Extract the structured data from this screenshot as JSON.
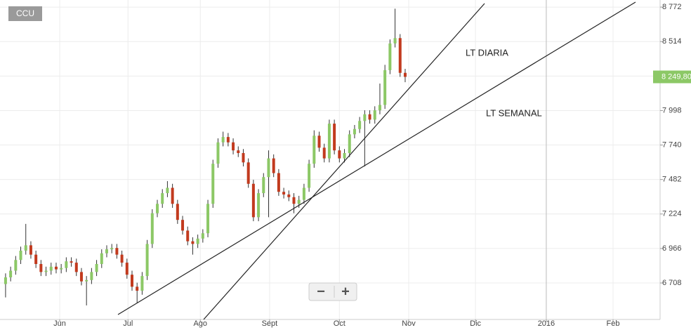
{
  "chart_data": {
    "type": "candlestick",
    "title": "CCU",
    "categories": [
      null,
      null,
      null,
      null,
      null,
      null,
      null,
      null,
      null,
      null,
      null,
      null,
      null,
      null,
      null,
      null,
      null,
      null,
      null,
      null,
      null,
      null,
      null,
      null,
      null,
      null,
      null,
      null,
      null,
      null,
      null,
      null,
      null,
      null,
      null,
      null,
      null,
      null,
      null,
      null,
      null,
      null,
      null,
      null,
      null,
      null,
      null,
      null,
      null,
      null,
      null,
      null,
      null,
      null,
      null,
      null,
      null,
      null,
      null,
      null,
      null,
      null,
      null,
      null,
      null,
      null,
      null,
      null,
      null,
      null,
      null,
      null,
      null,
      null,
      null,
      null,
      null,
      null,
      null,
      null
    ],
    "open": [
      6700,
      6750,
      6800,
      6880,
      6950,
      6990,
      6920,
      6850,
      6790,
      6800,
      6830,
      6810,
      6820,
      6870,
      6860,
      6790,
      6720,
      6730,
      6790,
      6850,
      6930,
      6960,
      6970,
      6920,
      6860,
      6770,
      6680,
      6650,
      6760,
      7000,
      7230,
      7300,
      7380,
      7420,
      7300,
      7180,
      7100,
      7020,
      7000,
      7040,
      7080,
      7300,
      7600,
      7760,
      7800,
      7760,
      7700,
      7680,
      7610,
      7450,
      7200,
      7380,
      7500,
      7640,
      7530,
      7390,
      7370,
      7350,
      7300,
      7330,
      7420,
      7600,
      7810,
      7720,
      7640,
      7900,
      7700,
      7640,
      7680,
      7820,
      7860,
      7920,
      7970,
      7930,
      8000,
      8040,
      8300,
      8500,
      8540,
      8280
    ],
    "high": [
      6780,
      6830,
      6910,
      6980,
      7150,
      7020,
      6950,
      6880,
      6830,
      6860,
      6860,
      6850,
      6900,
      6900,
      6890,
      6820,
      6760,
      6820,
      6880,
      6960,
      6990,
      7000,
      7000,
      6950,
      6890,
      6800,
      6710,
      6790,
      7030,
      7260,
      7330,
      7410,
      7470,
      7450,
      7330,
      7210,
      7130,
      7050,
      7070,
      7110,
      7330,
      7630,
      7790,
      7840,
      7830,
      7790,
      7730,
      7710,
      7640,
      7480,
      7410,
      7530,
      7700,
      7670,
      7560,
      7420,
      7400,
      7380,
      7360,
      7450,
      7630,
      7850,
      7840,
      7750,
      7930,
      7930,
      7730,
      7710,
      7850,
      7890,
      7950,
      8000,
      8000,
      8030,
      8200,
      8340,
      8530,
      8760,
      8570,
      8310
    ],
    "low": [
      6600,
      6720,
      6770,
      6850,
      6920,
      6890,
      6820,
      6760,
      6760,
      6770,
      6780,
      6780,
      6790,
      6830,
      6760,
      6690,
      6540,
      6700,
      6760,
      6820,
      6900,
      6930,
      6890,
      6830,
      6740,
      6650,
      6560,
      6620,
      6730,
      6970,
      7200,
      7270,
      7350,
      7270,
      7150,
      7070,
      6990,
      6920,
      6970,
      7010,
      7050,
      7270,
      7570,
      7730,
      7730,
      7670,
      7650,
      7580,
      7420,
      7170,
      7170,
      7350,
      7200,
      7500,
      7360,
      7340,
      7320,
      7230,
      7270,
      7300,
      7390,
      7570,
      7690,
      7610,
      7610,
      7670,
      7610,
      7610,
      7650,
      7790,
      7830,
      7580,
      7900,
      7900,
      7970,
      8010,
      8270,
      8470,
      8250,
      8210
    ],
    "close": [
      6750,
      6800,
      6880,
      6950,
      6990,
      6920,
      6850,
      6790,
      6800,
      6830,
      6810,
      6820,
      6870,
      6860,
      6790,
      6720,
      6730,
      6790,
      6850,
      6930,
      6960,
      6970,
      6920,
      6860,
      6770,
      6680,
      6650,
      6760,
      7000,
      7230,
      7300,
      7380,
      7420,
      7300,
      7180,
      7100,
      7020,
      7000,
      7040,
      7080,
      7300,
      7600,
      7760,
      7800,
      7760,
      7700,
      7680,
      7610,
      7450,
      7200,
      7380,
      7500,
      7640,
      7530,
      7390,
      7370,
      7350,
      7300,
      7330,
      7420,
      7600,
      7810,
      7720,
      7640,
      7900,
      7700,
      7640,
      7680,
      7820,
      7860,
      7920,
      7970,
      7930,
      8000,
      8040,
      8300,
      8500,
      8540,
      8280,
      8250
    ],
    "up_color": "#8cc866",
    "down_color": "#c23a1e",
    "ylim": [
      6435,
      8825
    ],
    "yticks": [
      {
        "value": 6708,
        "label": "6 708"
      },
      {
        "value": 6966,
        "label": "6 966"
      },
      {
        "value": 7224,
        "label": "7 224"
      },
      {
        "value": 7482,
        "label": "7 482"
      },
      {
        "value": 7740,
        "label": "7 740"
      },
      {
        "value": 7998,
        "label": "7 998"
      },
      {
        "value": 8256,
        "label": "8 256"
      },
      {
        "value": 8514,
        "label": "8 514"
      },
      {
        "value": 8772,
        "label": "8 772"
      }
    ],
    "xlim": [
      -1.1,
      129.4
    ],
    "xticks": [
      {
        "value": 10.7,
        "label": "Jun"
      },
      {
        "value": 24.2,
        "label": "Jul"
      },
      {
        "value": 38.5,
        "label": "Ago"
      },
      {
        "value": 52.2,
        "label": "Sept"
      },
      {
        "value": 66.0,
        "label": "Oct"
      },
      {
        "value": 79.7,
        "label": "Nov"
      },
      {
        "value": 92.9,
        "label": "Dic"
      },
      {
        "value": 106.9,
        "label": "2016"
      },
      {
        "value": 120.1,
        "label": "Feb"
      }
    ],
    "last_price": {
      "value": 8249.8,
      "label": "8 249,80"
    },
    "annotations": [
      "LT DIARIA",
      "LT SEMANAL"
    ],
    "zoom_out": "−",
    "zoom_in": "+",
    "grid": true
  }
}
